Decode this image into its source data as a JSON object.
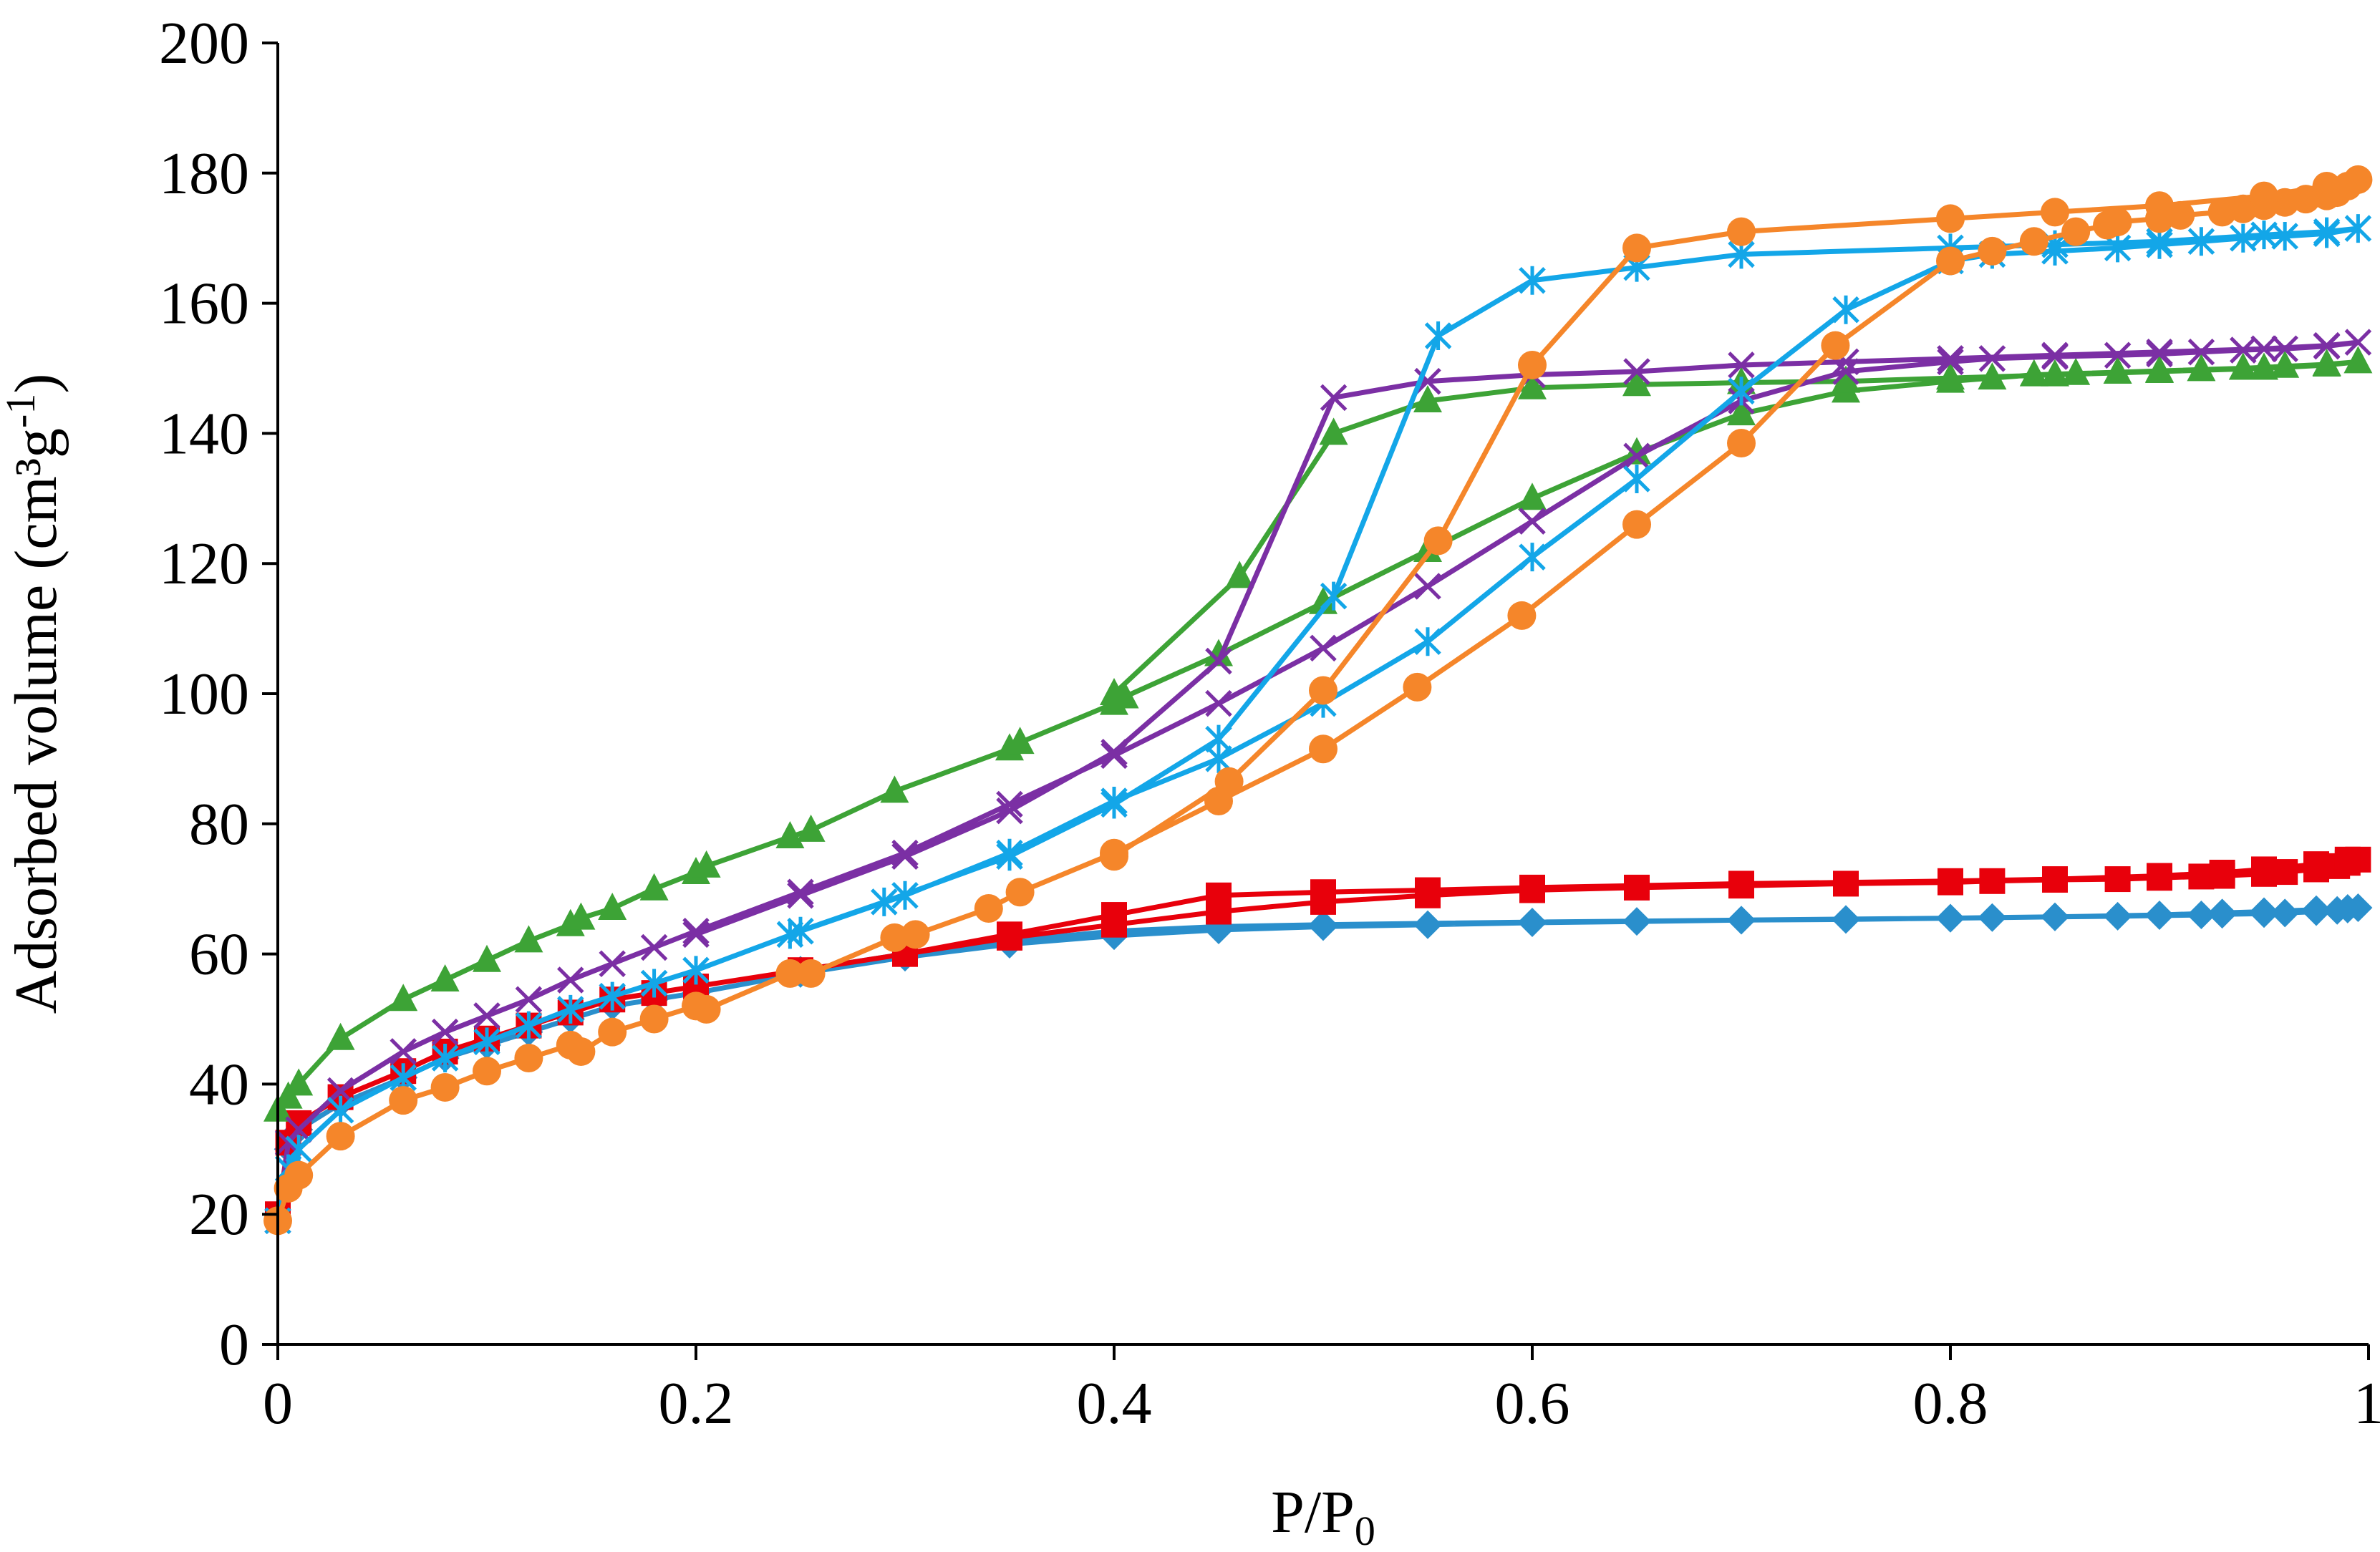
{
  "chart_data": {
    "type": "line",
    "title": "",
    "xlabel_main": "P/P",
    "xlabel_sub": "0",
    "ylabel_main": "Adsorbed volume (cm³g",
    "ylabel_sup": "-1",
    "ylabel_end": ")",
    "xlim": [
      0,
      1
    ],
    "ylim": [
      0,
      200
    ],
    "xticks": [
      0,
      0.2,
      0.4,
      0.6,
      0.8,
      1
    ],
    "xtick_labels": [
      "0",
      "0.2",
      "0.4",
      "0.6",
      "0.8",
      "1"
    ],
    "yticks": [
      0,
      20,
      40,
      60,
      80,
      100,
      120,
      140,
      160,
      180,
      200
    ],
    "ytick_labels": [
      "0",
      "20",
      "40",
      "60",
      "80",
      "100",
      "120",
      "140",
      "160",
      "180",
      "200"
    ],
    "grid": false,
    "legend": "none",
    "series": [
      {
        "name": "series-diamond-blue",
        "color": "#2a8fcc",
        "marker": "diamond",
        "x": [
          0.0,
          0.005,
          0.01,
          0.03,
          0.06,
          0.08,
          0.1,
          0.12,
          0.14,
          0.16,
          0.18,
          0.2,
          0.25,
          0.3,
          0.35,
          0.4,
          0.45,
          0.5,
          0.55,
          0.6,
          0.65,
          0.7,
          0.75,
          0.8,
          0.82,
          0.85,
          0.88,
          0.9,
          0.92,
          0.93,
          0.95,
          0.96,
          0.975,
          0.985,
          0.99,
          0.995,
          0.99,
          0.975,
          0.95,
          0.93,
          0.9,
          0.85,
          0.8,
          0.7,
          0.6,
          0.5,
          0.45,
          0.4,
          0.35,
          0.3,
          0.25
        ],
        "y": [
          19,
          30,
          33,
          37,
          41,
          44,
          46,
          48,
          50,
          52,
          53,
          54,
          57,
          59.5,
          61.5,
          62.8,
          63.7,
          64.2,
          64.5,
          64.8,
          65,
          65.2,
          65.3,
          65.5,
          65.6,
          65.7,
          65.8,
          65.9,
          66,
          66.1,
          66.2,
          66.3,
          66.5,
          66.7,
          66.9,
          67.1,
          67,
          66.8,
          66.5,
          66.3,
          66,
          65.7,
          65.5,
          65.2,
          64.9,
          64.5,
          64.2,
          63.5,
          62,
          60,
          57.5
        ]
      },
      {
        "name": "series-square-red",
        "color": "#e8000b",
        "marker": "square",
        "x": [
          0.0,
          0.005,
          0.01,
          0.03,
          0.06,
          0.08,
          0.1,
          0.12,
          0.14,
          0.16,
          0.18,
          0.2,
          0.25,
          0.3,
          0.35,
          0.4,
          0.45,
          0.5,
          0.55,
          0.6,
          0.65,
          0.7,
          0.75,
          0.8,
          0.82,
          0.85,
          0.88,
          0.9,
          0.92,
          0.93,
          0.95,
          0.96,
          0.975,
          0.985,
          0.99,
          0.995,
          0.99,
          0.975,
          0.95,
          0.93,
          0.9,
          0.85,
          0.8,
          0.7,
          0.6,
          0.55,
          0.5,
          0.45,
          0.4,
          0.35,
          0.3,
          0.25
        ],
        "y": [
          20,
          31,
          34,
          38,
          42,
          45,
          47,
          49,
          51,
          53,
          54,
          55,
          57.5,
          60,
          62.5,
          64.5,
          66.5,
          68,
          69,
          69.8,
          70.2,
          70.5,
          70.8,
          71,
          71.2,
          71.4,
          71.5,
          71.7,
          71.9,
          72,
          72.3,
          72.6,
          73,
          73.5,
          74,
          74.5,
          74.5,
          73.8,
          73,
          72.5,
          72,
          71.5,
          71.2,
          70.8,
          70.2,
          69.8,
          69.5,
          69,
          66,
          63,
          60,
          57.5
        ]
      },
      {
        "name": "series-triangle-green",
        "color": "#3da336",
        "marker": "triangle",
        "x": [
          0.0,
          0.005,
          0.01,
          0.03,
          0.06,
          0.08,
          0.1,
          0.12,
          0.14,
          0.145,
          0.16,
          0.18,
          0.2,
          0.205,
          0.245,
          0.255,
          0.295,
          0.35,
          0.355,
          0.4,
          0.405,
          0.45,
          0.5,
          0.55,
          0.6,
          0.65,
          0.7,
          0.75,
          0.8,
          0.82,
          0.84,
          0.86,
          0.88,
          0.9,
          0.92,
          0.94,
          0.96,
          0.98,
          0.995,
          0.98,
          0.95,
          0.9,
          0.85,
          0.8,
          0.75,
          0.7,
          0.65,
          0.6,
          0.55,
          0.505,
          0.46,
          0.4
        ],
        "y": [
          36,
          38,
          40,
          47,
          53,
          56,
          59,
          62,
          64.5,
          65.5,
          67,
          70,
          72.5,
          73.5,
          78,
          79,
          85,
          91.5,
          92.5,
          98.5,
          99.5,
          106,
          114,
          122,
          130,
          137,
          143,
          146.5,
          148,
          148.5,
          149,
          149.2,
          149.4,
          149.6,
          149.8,
          150,
          150.3,
          150.6,
          151,
          150.5,
          150,
          149.5,
          149,
          148.5,
          148,
          147.8,
          147.5,
          147,
          145,
          140,
          118,
          100
        ]
      },
      {
        "name": "series-x-purple",
        "color": "#7b2fa4",
        "marker": "x",
        "x": [
          0.0,
          0.005,
          0.01,
          0.03,
          0.06,
          0.08,
          0.1,
          0.12,
          0.14,
          0.16,
          0.18,
          0.2,
          0.25,
          0.3,
          0.35,
          0.4,
          0.45,
          0.5,
          0.55,
          0.6,
          0.65,
          0.7,
          0.75,
          0.8,
          0.82,
          0.85,
          0.88,
          0.9,
          0.92,
          0.94,
          0.96,
          0.98,
          0.995,
          0.98,
          0.95,
          0.9,
          0.85,
          0.8,
          0.75,
          0.7,
          0.65,
          0.6,
          0.55,
          0.505,
          0.45,
          0.4,
          0.35,
          0.3,
          0.25,
          0.2
        ],
        "y": [
          19,
          31,
          33,
          39,
          45,
          48,
          50.5,
          53,
          56,
          58.5,
          61,
          63.5,
          69.5,
          75.5,
          83,
          90.5,
          98.5,
          107,
          116.5,
          126.5,
          136.5,
          145,
          149.5,
          151,
          151.5,
          151.8,
          152,
          152.2,
          152.5,
          152.8,
          153,
          153.4,
          154,
          153.5,
          153,
          152.5,
          152,
          151.5,
          151,
          150.5,
          149.5,
          149,
          148,
          145.5,
          105,
          91,
          82,
          75,
          69,
          63
        ]
      },
      {
        "name": "series-star-cyan",
        "color": "#13a6e8",
        "marker": "star",
        "x": [
          0.0,
          0.005,
          0.01,
          0.03,
          0.06,
          0.08,
          0.1,
          0.12,
          0.14,
          0.16,
          0.18,
          0.2,
          0.25,
          0.3,
          0.35,
          0.4,
          0.45,
          0.5,
          0.55,
          0.6,
          0.65,
          0.7,
          0.75,
          0.8,
          0.82,
          0.85,
          0.88,
          0.9,
          0.92,
          0.94,
          0.96,
          0.98,
          0.995,
          0.98,
          0.95,
          0.9,
          0.85,
          0.8,
          0.7,
          0.65,
          0.6,
          0.555,
          0.505,
          0.45,
          0.4,
          0.35,
          0.29,
          0.245
        ],
        "y": [
          19,
          27,
          30,
          36,
          41,
          44,
          46.5,
          49,
          51.5,
          53.5,
          55.5,
          57.5,
          63.5,
          69,
          75.5,
          83.5,
          90,
          98.5,
          108,
          121,
          133,
          146.5,
          159,
          166.5,
          167.5,
          168,
          168.5,
          169,
          169.5,
          170,
          170.3,
          170.7,
          171.5,
          171,
          170.5,
          169.5,
          169,
          168.5,
          167.5,
          165.5,
          163.5,
          155,
          115,
          93,
          83,
          75,
          68,
          63
        ]
      },
      {
        "name": "series-circle-orange",
        "color": "#f5862a",
        "marker": "circle",
        "x": [
          0.0,
          0.005,
          0.01,
          0.03,
          0.06,
          0.08,
          0.1,
          0.12,
          0.14,
          0.145,
          0.16,
          0.18,
          0.2,
          0.205,
          0.245,
          0.255,
          0.295,
          0.305,
          0.34,
          0.355,
          0.4,
          0.45,
          0.5,
          0.545,
          0.595,
          0.65,
          0.7,
          0.745,
          0.8,
          0.82,
          0.84,
          0.86,
          0.875,
          0.88,
          0.9,
          0.91,
          0.93,
          0.94,
          0.95,
          0.96,
          0.97,
          0.98,
          0.985,
          0.99,
          0.995,
          0.98,
          0.95,
          0.9,
          0.85,
          0.8,
          0.7,
          0.65,
          0.6,
          0.555,
          0.5,
          0.455,
          0.4
        ],
        "y": [
          19,
          24,
          26,
          32,
          37.5,
          39.5,
          42,
          44,
          46,
          45,
          48,
          50,
          52,
          51.5,
          57,
          57,
          62.5,
          63,
          67,
          69.5,
          75.5,
          83.5,
          91.5,
          101,
          112,
          126,
          138.5,
          153.5,
          166.5,
          168,
          169.5,
          171,
          172,
          172.5,
          173,
          173.5,
          174,
          174.5,
          175,
          175.5,
          176,
          176.5,
          177,
          178,
          179,
          178,
          176.5,
          175,
          174,
          173,
          171,
          168.5,
          150.5,
          123.5,
          100.5,
          86.5,
          75
        ]
      }
    ]
  }
}
